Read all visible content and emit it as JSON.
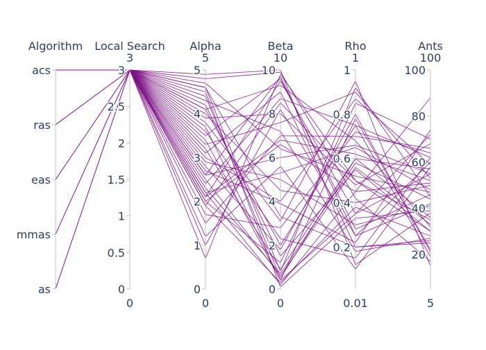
{
  "chart_data": {
    "type": "parcoords",
    "line_color": "#7d1285",
    "dimensions": [
      {
        "key": "algorithm",
        "label": "Algorithm",
        "categorical": true,
        "categories": [
          "as",
          "mmas",
          "eas",
          "ras",
          "acs"
        ],
        "tick_labels": [
          "as",
          "mmas",
          "eas",
          "ras",
          "acs"
        ],
        "range": [
          0,
          4
        ],
        "range_labels": [
          "",
          ""
        ]
      },
      {
        "key": "local_search",
        "label": "Local Search",
        "range": [
          0,
          3
        ],
        "range_labels": [
          "0",
          "3"
        ],
        "ticks": [
          0,
          0.5,
          1,
          1.5,
          2,
          2.5,
          3
        ],
        "tick_labels": [
          "0",
          "0.5",
          "1",
          "1.5",
          "2",
          "2.5",
          "3"
        ]
      },
      {
        "key": "alpha",
        "label": "Alpha",
        "range": [
          0,
          5
        ],
        "range_labels": [
          "0",
          "5"
        ],
        "ticks": [
          0,
          1,
          2,
          3,
          4,
          5
        ],
        "tick_labels": [
          "0",
          "1",
          "2",
          "3",
          "4",
          "5"
        ]
      },
      {
        "key": "beta",
        "label": "Beta",
        "range": [
          0,
          10
        ],
        "range_labels": [
          "0",
          "10"
        ],
        "ticks": [
          0,
          2,
          4,
          6,
          8,
          10
        ],
        "tick_labels": [
          "0",
          "2",
          "4",
          "6",
          "8",
          "10"
        ]
      },
      {
        "key": "rho",
        "label": "Rho",
        "range": [
          0.01,
          1
        ],
        "range_labels": [
          "0.01",
          "1"
        ],
        "ticks": [
          0.2,
          0.4,
          0.6,
          0.8,
          1
        ],
        "tick_labels": [
          "0.2",
          "0.4",
          "0.6",
          "0.8",
          "1"
        ]
      },
      {
        "key": "ants",
        "label": "Ants",
        "range": [
          5,
          100
        ],
        "range_labels": [
          "5",
          "100"
        ],
        "ticks": [
          20,
          40,
          60,
          80,
          100
        ],
        "tick_labels": [
          "20",
          "40",
          "60",
          "80",
          "100"
        ]
      }
    ],
    "rows": [
      [
        "acs",
        3,
        4.6,
        0.8,
        0.92,
        45
      ],
      [
        "acs",
        3,
        2.1,
        9.5,
        0.35,
        72
      ],
      [
        "acs",
        3,
        4.2,
        1.5,
        0.55,
        30
      ],
      [
        "acs",
        3,
        3.4,
        0.4,
        0.78,
        22
      ],
      [
        "acs",
        3,
        1.0,
        8.2,
        0.25,
        60
      ],
      [
        "acs",
        3,
        2.6,
        6.0,
        0.66,
        55
      ],
      [
        "acs",
        3,
        4.9,
        10.0,
        0.12,
        38
      ],
      [
        "acs",
        3,
        2.2,
        0.2,
        0.45,
        88
      ],
      [
        "acs",
        3,
        3.8,
        3.1,
        0.95,
        15
      ],
      [
        "acs",
        3,
        1.5,
        7.0,
        0.7,
        66
      ],
      [
        "acs",
        3,
        2.9,
        5.0,
        0.3,
        41
      ],
      [
        "acs",
        3,
        4.4,
        0.5,
        0.6,
        57
      ],
      [
        "acs",
        3,
        3.1,
        9.0,
        0.2,
        25
      ],
      [
        "acs",
        3,
        2.0,
        1.2,
        0.85,
        70
      ],
      [
        "acs",
        3,
        4.0,
        4.5,
        0.4,
        50
      ],
      [
        "acs",
        3,
        0.7,
        9.8,
        0.5,
        35
      ],
      [
        "acs",
        3,
        3.6,
        2.3,
        0.15,
        62
      ],
      [
        "acs",
        3,
        2.4,
        8.7,
        0.75,
        19
      ],
      [
        "acs",
        3,
        4.7,
        6.4,
        0.52,
        47
      ],
      [
        "acs",
        3,
        1.9,
        0.3,
        0.38,
        28
      ],
      [
        "acs",
        3,
        3.3,
        7.6,
        0.9,
        53
      ],
      [
        "acs",
        3,
        2.7,
        3.9,
        0.22,
        74
      ],
      [
        "acs",
        3,
        4.1,
        9.3,
        0.68,
        32
      ],
      [
        "acs",
        3,
        2.3,
        0.7,
        0.58,
        44
      ],
      [
        "acs",
        3,
        1.2,
        5.6,
        0.1,
        58
      ],
      [
        "acs",
        3,
        3.9,
        8.0,
        0.48,
        68
      ],
      [
        "acs",
        3,
        2.8,
        1.8,
        0.8,
        21
      ],
      [
        "acs",
        3,
        4.5,
        0.1,
        0.33,
        39
      ],
      [
        "acs",
        3,
        2.1,
        6.8,
        0.62,
        52
      ],
      [
        "acs",
        3,
        3.5,
        9.6,
        0.28,
        46
      ],
      [
        "acs",
        3,
        1.7,
        2.8,
        0.72,
        64
      ],
      [
        "acs",
        3,
        4.3,
        7.2,
        0.18,
        27
      ],
      [
        "acs",
        3,
        2.5,
        0.6,
        0.56,
        33
      ],
      [
        "acs",
        3,
        3.0,
        4.0,
        0.87,
        59
      ],
      [
        "acs",
        3,
        4.8,
        9.9,
        0.42,
        17
      ],
      [
        "ras",
        3,
        2.2,
        5.3,
        0.65,
        48
      ],
      [
        "ras",
        3,
        3.7,
        0.4,
        0.35,
        55
      ],
      [
        "eas",
        3,
        1.9,
        8.5,
        0.5,
        30
      ],
      [
        "eas",
        3,
        4.1,
        2.0,
        0.75,
        62
      ],
      [
        "mmas",
        3,
        2.6,
        9.7,
        0.25,
        42
      ],
      [
        "mmas",
        3,
        3.2,
        0.9,
        0.6,
        36
      ],
      [
        "as",
        3,
        2.0,
        6.6,
        0.45,
        51
      ],
      [
        "as",
        3,
        4.6,
        3.3,
        0.2,
        26
      ]
    ]
  }
}
